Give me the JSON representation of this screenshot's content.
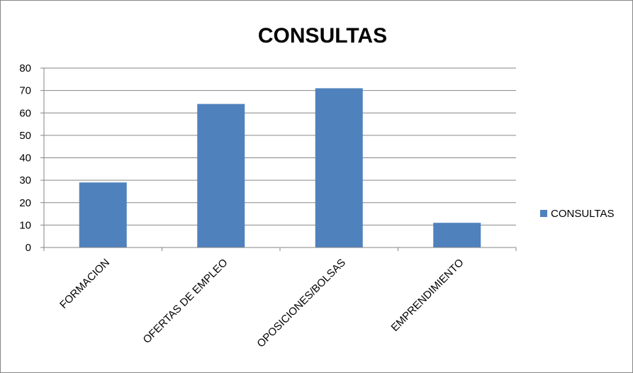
{
  "chart_data": {
    "type": "bar",
    "title": "CONSULTAS",
    "categories": [
      "FORMACION",
      "OFERTAS DE EMPLEO",
      "OPOSICIONES/BOLSAS",
      "EMPRENDIMIENTO"
    ],
    "series": [
      {
        "name": "CONSULTAS",
        "values": [
          29,
          64,
          71,
          11
        ],
        "color": "#4f81bd"
      }
    ],
    "ylim": [
      0,
      80
    ],
    "yticks": [
      0,
      10,
      20,
      30,
      40,
      50,
      60,
      70,
      80
    ],
    "grid": true,
    "legend": "right"
  }
}
